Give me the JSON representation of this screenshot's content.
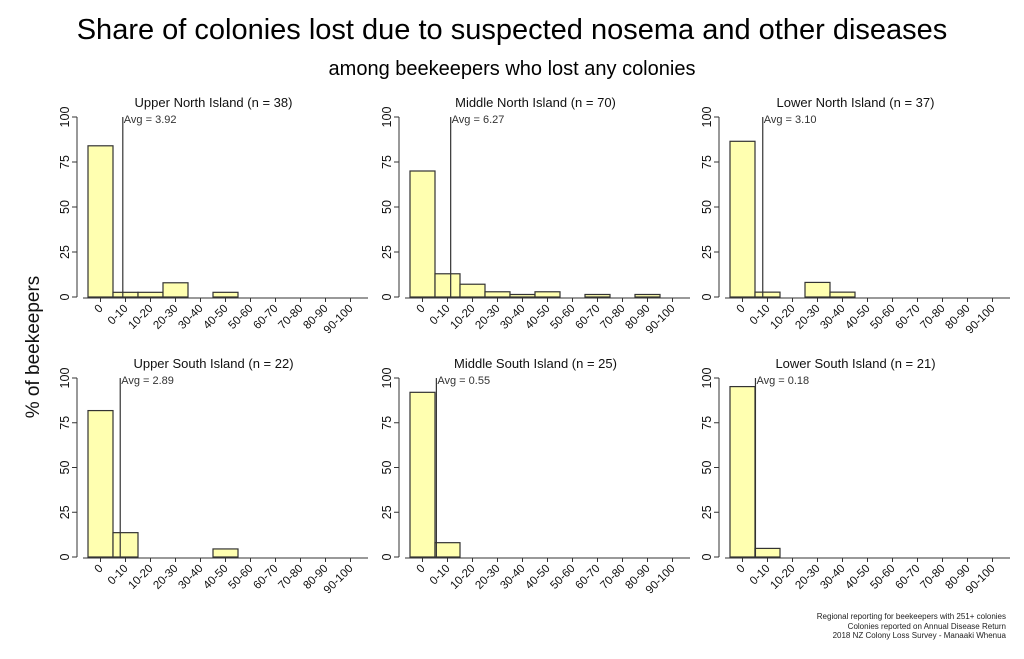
{
  "title": "Share of colonies lost due to suspected nosema and other diseases",
  "subtitle": "among beekeepers who lost any colonies",
  "ylabel": "% of beekeepers",
  "notes": [
    "Regional reporting for beekeepers with 251+ colonies",
    "Colonies reported on Annual Disease Return",
    "2018 NZ Colony Loss Survey - Manaaki Whenua"
  ],
  "colors": {
    "bar_fill": "#ffffb0",
    "bar_stroke": "#333333",
    "avg_line": "#333333"
  },
  "chart_data": [
    {
      "type": "bar",
      "title": "Upper North Island (n = 38)",
      "avg_label": "Avg = 3.92",
      "avg": 3.92,
      "categories": [
        "0",
        "0-10",
        "10-20",
        "20-30",
        "30-40",
        "40-50",
        "50-60",
        "60-70",
        "70-80",
        "80-90",
        "90-100"
      ],
      "values": [
        84,
        2.6,
        2.6,
        7.9,
        0,
        2.6,
        0,
        0,
        0,
        0,
        0
      ],
      "ylim": [
        0,
        100
      ],
      "yticks": [
        0,
        25,
        50,
        75,
        100
      ]
    },
    {
      "type": "bar",
      "title": "Middle North Island (n = 70)",
      "avg_label": "Avg = 6.27",
      "avg": 6.27,
      "categories": [
        "0",
        "0-10",
        "10-20",
        "20-30",
        "30-40",
        "40-50",
        "50-60",
        "60-70",
        "70-80",
        "80-90",
        "90-100"
      ],
      "values": [
        70,
        12.9,
        7.1,
        2.9,
        1.4,
        2.9,
        0,
        1.4,
        0,
        1.4,
        0
      ],
      "ylim": [
        0,
        100
      ],
      "yticks": [
        0,
        25,
        50,
        75,
        100
      ]
    },
    {
      "type": "bar",
      "title": "Lower North Island (n = 37)",
      "avg_label": "Avg = 3.10",
      "avg": 3.1,
      "categories": [
        "0",
        "0-10",
        "10-20",
        "20-30",
        "30-40",
        "40-50",
        "50-60",
        "60-70",
        "70-80",
        "80-90",
        "90-100"
      ],
      "values": [
        86.5,
        2.7,
        0,
        8.1,
        2.7,
        0,
        0,
        0,
        0,
        0,
        0
      ],
      "ylim": [
        0,
        100
      ],
      "yticks": [
        0,
        25,
        50,
        75,
        100
      ]
    },
    {
      "type": "bar",
      "title": "Upper South Island (n = 22)",
      "avg_label": "Avg = 2.89",
      "avg": 2.89,
      "categories": [
        "0",
        "0-10",
        "10-20",
        "20-30",
        "30-40",
        "40-50",
        "50-60",
        "60-70",
        "70-80",
        "80-90",
        "90-100"
      ],
      "values": [
        81.8,
        13.6,
        0,
        0,
        0,
        4.5,
        0,
        0,
        0,
        0,
        0
      ],
      "ylim": [
        0,
        100
      ],
      "yticks": [
        0,
        25,
        50,
        75,
        100
      ]
    },
    {
      "type": "bar",
      "title": "Middle South Island (n = 25)",
      "avg_label": "Avg = 0.55",
      "avg": 0.55,
      "categories": [
        "0",
        "0-10",
        "10-20",
        "20-30",
        "30-40",
        "40-50",
        "50-60",
        "60-70",
        "70-80",
        "80-90",
        "90-100"
      ],
      "values": [
        92,
        8,
        0,
        0,
        0,
        0,
        0,
        0,
        0,
        0,
        0
      ],
      "ylim": [
        0,
        100
      ],
      "yticks": [
        0,
        25,
        50,
        75,
        100
      ]
    },
    {
      "type": "bar",
      "title": "Lower South Island (n = 21)",
      "avg_label": "Avg = 0.18",
      "avg": 0.18,
      "categories": [
        "0",
        "0-10",
        "10-20",
        "20-30",
        "30-40",
        "40-50",
        "50-60",
        "60-70",
        "70-80",
        "80-90",
        "90-100"
      ],
      "values": [
        95.2,
        4.8,
        0,
        0,
        0,
        0,
        0,
        0,
        0,
        0,
        0
      ],
      "ylim": [
        0,
        100
      ],
      "yticks": [
        0,
        25,
        50,
        75,
        100
      ]
    }
  ]
}
